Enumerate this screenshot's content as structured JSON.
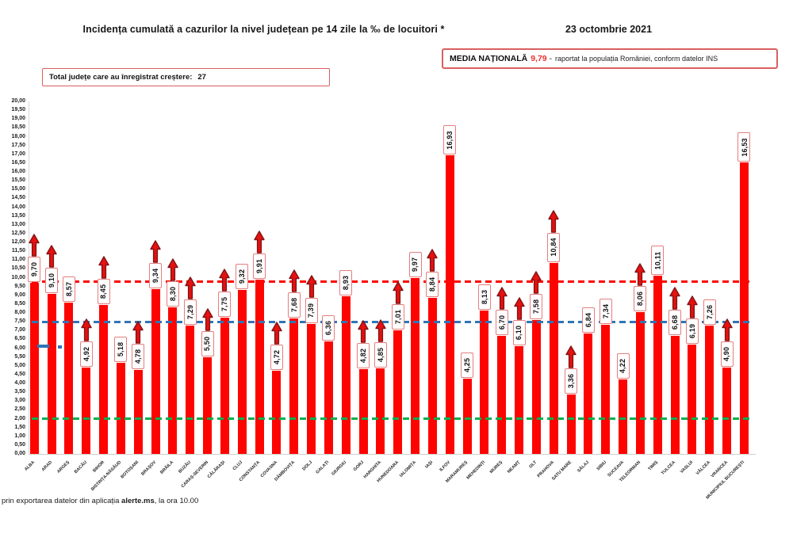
{
  "header": {
    "title": "Incidența cumulată a cazurilor la nivel județean pe 14 zile la ‰ de locuitori *",
    "date": "23 octombrie 2021",
    "national_average": {
      "label": "MEDIA NAȚIONALĂ",
      "value": "9,79",
      "separator": "-",
      "note": "raportat la populația României, conform datelor INS"
    },
    "growth_box": {
      "label": "Total județe care au înregistrat creștere:",
      "value": "27"
    }
  },
  "footer": {
    "prefix": "prin exportarea datelor din aplicația ",
    "bold": "alerte.ms",
    "suffix": ", la ora 10.00"
  },
  "colors": {
    "bar": "#fe0400",
    "national_average_line": "#fe0400",
    "secondary_line": "#2e75b6",
    "threshold_line": "#00b050",
    "increase_arrow_fill": "#e81010",
    "increase_arrow_stroke": "#801515",
    "value_box_border": "#e57e7e",
    "accent_red_text": "#e8302a"
  },
  "chart_data": {
    "type": "bar",
    "title": "Incidența cumulată a cazurilor la nivel județean pe 14 zile la ‰ de locuitori *",
    "xlabel": "",
    "ylabel": "",
    "ylim": [
      0,
      20
    ],
    "ytick_step": 0.5,
    "grid": false,
    "legend": "none",
    "decimal_separator": ",",
    "categories": [
      "ALBA",
      "ARAD",
      "ARGEȘ",
      "BACĂU",
      "BIHOR",
      "BISTRIȚA-NĂSĂUD",
      "BOTOȘANI",
      "BRAȘOV",
      "BRĂILA",
      "BUZĂU",
      "CARAȘ-SEVERIN",
      "CĂLĂRAȘI",
      "CLUJ",
      "CONSTANȚA",
      "COVASNA",
      "DÂMBOVIȚA",
      "DOLJ",
      "GALAȚI",
      "GIURGIU",
      "GORJ",
      "HARGHITA",
      "HUNEDOARA",
      "IALOMIȚA",
      "IAȘI",
      "ILFOV",
      "MARAMUREȘ",
      "MEHEDINȚI",
      "MUREȘ",
      "NEAMȚ",
      "OLT",
      "PRAHOVA",
      "SATU MARE",
      "SĂLAJ",
      "SIBIU",
      "SUCEAVA",
      "TELEORMAN",
      "TIMIȘ",
      "TULCEA",
      "VASLUI",
      "VÂLCEA",
      "VRANCEA",
      "MUNICIPIUL BUCUREȘTI"
    ],
    "values": [
      9.7,
      9.1,
      8.57,
      4.92,
      8.45,
      5.18,
      4.78,
      9.34,
      8.3,
      7.29,
      5.5,
      7.75,
      9.32,
      9.91,
      4.72,
      7.68,
      7.39,
      6.36,
      8.93,
      4.82,
      4.85,
      7.01,
      9.97,
      8.84,
      16.93,
      4.25,
      8.13,
      6.7,
      6.1,
      7.58,
      10.84,
      3.36,
      6.84,
      7.34,
      4.22,
      8.06,
      10.11,
      6.68,
      6.19,
      7.26,
      4.9,
      16.53
    ],
    "increase_flags": [
      true,
      true,
      false,
      true,
      true,
      false,
      true,
      true,
      true,
      true,
      true,
      true,
      false,
      true,
      true,
      true,
      true,
      false,
      false,
      true,
      true,
      true,
      false,
      true,
      false,
      false,
      false,
      true,
      true,
      true,
      true,
      true,
      false,
      false,
      false,
      true,
      false,
      true,
      true,
      false,
      true,
      false
    ],
    "reference_lines": [
      {
        "name": "media-nationala",
        "value": 9.79,
        "color": "#fe0400",
        "style": "dashed"
      },
      {
        "name": "prag-albastru",
        "value": 7.5,
        "color": "#2e75b6",
        "style": "dashed"
      },
      {
        "name": "prag-verde",
        "value": 2.0,
        "color": "#00b050",
        "style": "dashed"
      }
    ]
  }
}
